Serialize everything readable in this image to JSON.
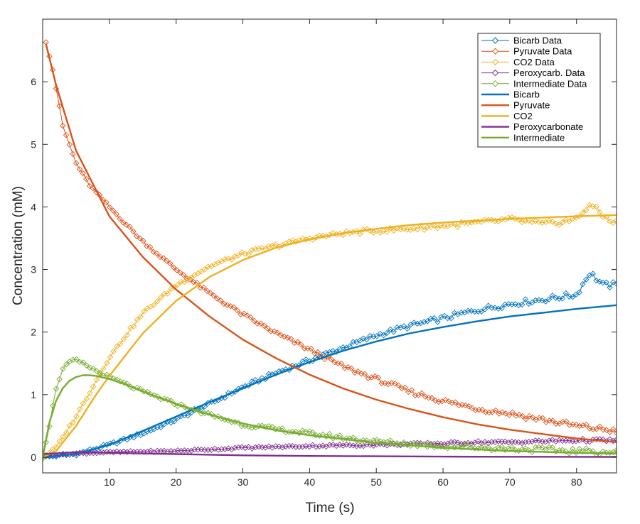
{
  "chart_data": {
    "type": "line",
    "title": "",
    "xlabel": "Time (s)",
    "ylabel": "Concentration (mM)",
    "xlim": [
      0,
      86
    ],
    "ylim": [
      -0.25,
      7
    ],
    "xticks": [
      10,
      20,
      30,
      40,
      50,
      60,
      70,
      80
    ],
    "yticks": [
      0,
      1,
      2,
      3,
      4,
      5,
      6
    ],
    "legend_position": "top-right",
    "series": [
      {
        "name": "Bicarb Data",
        "kind": "data",
        "color": "#0072BD",
        "marker": "diamond",
        "x": [
          0,
          5,
          10,
          15,
          20,
          25,
          30,
          35,
          40,
          45,
          50,
          55,
          60,
          65,
          70,
          75,
          80,
          82,
          84,
          86
        ],
        "y": [
          0,
          0.05,
          0.2,
          0.38,
          0.6,
          0.85,
          1.12,
          1.35,
          1.55,
          1.75,
          1.95,
          2.1,
          2.22,
          2.35,
          2.45,
          2.52,
          2.6,
          2.95,
          2.75,
          2.75
        ]
      },
      {
        "name": "Pyruvate Data",
        "kind": "data",
        "color": "#D95319",
        "marker": "diamond",
        "x": [
          0.5,
          1.5,
          3,
          5,
          7,
          10,
          15,
          20,
          25,
          30,
          35,
          40,
          45,
          50,
          55,
          60,
          65,
          70,
          75,
          80,
          86
        ],
        "y": [
          6.65,
          6.2,
          5.3,
          4.7,
          4.35,
          4.0,
          3.45,
          3.0,
          2.62,
          2.28,
          1.98,
          1.72,
          1.45,
          1.25,
          1.05,
          0.9,
          0.78,
          0.7,
          0.6,
          0.5,
          0.42
        ]
      },
      {
        "name": "CO2 Data",
        "kind": "data",
        "color": "#EDB120",
        "marker": "diamond",
        "x": [
          0,
          2,
          5,
          10,
          15,
          20,
          25,
          30,
          35,
          40,
          45,
          50,
          55,
          60,
          65,
          70,
          75,
          80,
          82,
          84,
          86
        ],
        "y": [
          0,
          0.15,
          0.65,
          1.6,
          2.3,
          2.75,
          3.05,
          3.25,
          3.38,
          3.5,
          3.58,
          3.62,
          3.65,
          3.7,
          3.74,
          3.8,
          3.72,
          3.8,
          4.05,
          3.85,
          3.75
        ]
      },
      {
        "name": "Peroxycarb. Data",
        "kind": "data",
        "color": "#7E2F8E",
        "marker": "diamond",
        "x": [
          0,
          5,
          10,
          20,
          30,
          40,
          50,
          60,
          65,
          70,
          80,
          86
        ],
        "y": [
          0.02,
          0.06,
          0.08,
          0.1,
          0.15,
          0.18,
          0.2,
          0.22,
          0.24,
          0.24,
          0.27,
          0.27
        ]
      },
      {
        "name": "Intermediate Data",
        "kind": "data",
        "color": "#77AC30",
        "marker": "diamond",
        "x": [
          0,
          1,
          2,
          3,
          4,
          5,
          6,
          8,
          10,
          15,
          20,
          25,
          30,
          40,
          50,
          60,
          70,
          80,
          86
        ],
        "y": [
          0,
          0.5,
          1.1,
          1.4,
          1.52,
          1.55,
          1.5,
          1.38,
          1.28,
          1.05,
          0.85,
          0.68,
          0.52,
          0.38,
          0.25,
          0.18,
          0.14,
          0.1,
          0.08
        ]
      },
      {
        "name": "Bicarb",
        "kind": "fit",
        "color": "#0072BD",
        "x": [
          0,
          5,
          10,
          15,
          20,
          25,
          30,
          35,
          40,
          45,
          50,
          55,
          60,
          65,
          70,
          75,
          80,
          86
        ],
        "y": [
          0,
          0.05,
          0.2,
          0.42,
          0.65,
          0.88,
          1.1,
          1.32,
          1.52,
          1.7,
          1.85,
          1.98,
          2.08,
          2.17,
          2.25,
          2.31,
          2.37,
          2.43
        ]
      },
      {
        "name": "Pyruvate",
        "kind": "fit",
        "color": "#D95319",
        "x": [
          0.5,
          2,
          5,
          10,
          15,
          20,
          25,
          30,
          35,
          40,
          45,
          50,
          55,
          60,
          65,
          70,
          75,
          80,
          86
        ],
        "y": [
          6.6,
          5.95,
          4.9,
          3.85,
          3.2,
          2.68,
          2.25,
          1.88,
          1.58,
          1.32,
          1.1,
          0.92,
          0.77,
          0.64,
          0.53,
          0.44,
          0.37,
          0.3,
          0.24
        ]
      },
      {
        "name": "CO2",
        "kind": "fit",
        "color": "#EDB120",
        "x": [
          0,
          2,
          5,
          8,
          10,
          15,
          20,
          25,
          30,
          35,
          40,
          45,
          50,
          55,
          60,
          65,
          70,
          75,
          80,
          86
        ],
        "y": [
          0,
          0.1,
          0.5,
          1.0,
          1.3,
          1.98,
          2.5,
          2.88,
          3.15,
          3.35,
          3.48,
          3.58,
          3.65,
          3.71,
          3.75,
          3.78,
          3.81,
          3.83,
          3.85,
          3.87
        ]
      },
      {
        "name": "Peroxycarbonate",
        "kind": "fit",
        "color": "#7E2F8E",
        "x": [
          0,
          5,
          10,
          20,
          30,
          40,
          50,
          60,
          70,
          80,
          86
        ],
        "y": [
          0.05,
          0.08,
          0.07,
          0.05,
          0.03,
          0.02,
          0.015,
          0.01,
          0.008,
          0.006,
          0.005
        ]
      },
      {
        "name": "Intermediate",
        "kind": "fit",
        "color": "#77AC30",
        "x": [
          0,
          1,
          2,
          3,
          4,
          5,
          6,
          7,
          8,
          10,
          12,
          15,
          20,
          25,
          30,
          35,
          40,
          50,
          60,
          70,
          80,
          86
        ],
        "y": [
          0,
          0.55,
          0.9,
          1.1,
          1.22,
          1.28,
          1.31,
          1.31,
          1.3,
          1.25,
          1.18,
          1.05,
          0.85,
          0.68,
          0.54,
          0.43,
          0.35,
          0.23,
          0.15,
          0.1,
          0.07,
          0.06
        ]
      }
    ]
  }
}
